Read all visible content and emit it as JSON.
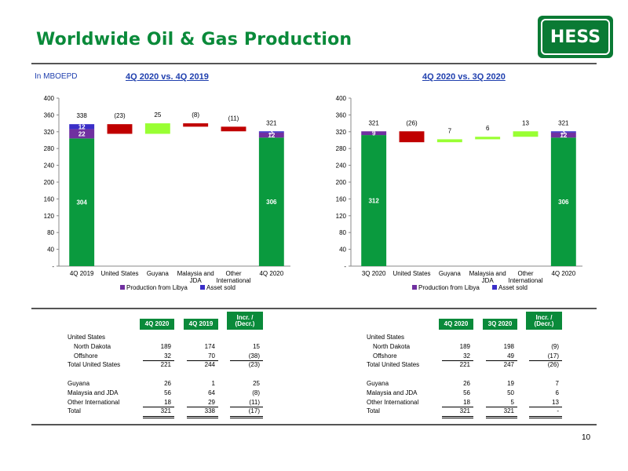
{
  "title": "Worldwide Oil & Gas Production",
  "logo_text": "HESS",
  "unit_label": "In MBOEPD",
  "page_number": "10",
  "colors": {
    "base": "#0a9a3e",
    "decrease": "#c00000",
    "increase": "#99ff33",
    "libya": "#7030a0",
    "asset_sold": "#3a2ec8"
  },
  "chart_data": [
    {
      "type": "bar",
      "title": "4Q 2020 vs. 4Q 2019",
      "categories": [
        "4Q 2019",
        "United States",
        "Guyana",
        "Malaysia and JDA",
        "Other International",
        "4Q 2020"
      ],
      "ylim": [
        0,
        400
      ],
      "yticks": [
        "-",
        "40",
        "80",
        "120",
        "160",
        "200",
        "240",
        "280",
        "320",
        "360",
        "400"
      ],
      "start": {
        "base": 304,
        "libya": 22,
        "asset_sold": 12,
        "total": 338
      },
      "steps": [
        {
          "label": "(23)",
          "delta": -23
        },
        {
          "label": "25",
          "delta": 25
        },
        {
          "label": "(8)",
          "delta": -8
        },
        {
          "label": "(11)",
          "delta": -11
        }
      ],
      "end": {
        "base": 306,
        "libya": 12,
        "asset_sold": 3,
        "total": 321
      },
      "legend": [
        "Production from Libya",
        "Asset sold"
      ]
    },
    {
      "type": "bar",
      "title": "4Q 2020 vs. 3Q 2020",
      "categories": [
        "3Q 2020",
        "United States",
        "Guyana",
        "Malaysia and JDA",
        "Other International",
        "4Q 2020"
      ],
      "ylim": [
        0,
        400
      ],
      "yticks": [
        "-",
        "40",
        "80",
        "120",
        "160",
        "200",
        "240",
        "280",
        "320",
        "360",
        "400"
      ],
      "start": {
        "base": 312,
        "libya": 9,
        "asset_sold": 0,
        "total": 321
      },
      "steps": [
        {
          "label": "(26)",
          "delta": -26
        },
        {
          "label": "7",
          "delta": 7
        },
        {
          "label": "6",
          "delta": 6
        },
        {
          "label": "13",
          "delta": 13
        }
      ],
      "end": {
        "base": 306,
        "libya": 12,
        "asset_sold": 3,
        "total": 321
      },
      "legend": [
        "Production from Libya",
        "Asset sold"
      ]
    }
  ],
  "tables": [
    {
      "headers": [
        "4Q 2020",
        "4Q 2019",
        "Incr. / (Decr.)"
      ],
      "rows": [
        {
          "label": "United States",
          "values": [
            "",
            "",
            ""
          ],
          "indent": false
        },
        {
          "label": "North Dakota",
          "values": [
            "189",
            "174",
            "15"
          ],
          "indent": true
        },
        {
          "label": "Offshore",
          "values": [
            "32",
            "70",
            "(38)"
          ],
          "indent": true,
          "underline": true
        },
        {
          "label": "Total United States",
          "values": [
            "221",
            "244",
            "(23)"
          ],
          "indent": false
        },
        {
          "label": "",
          "values": [
            "",
            "",
            ""
          ],
          "indent": false
        },
        {
          "label": "Guyana",
          "values": [
            "26",
            "1",
            "25"
          ],
          "indent": false
        },
        {
          "label": "Malaysia and JDA",
          "values": [
            "56",
            "64",
            "(8)"
          ],
          "indent": false
        },
        {
          "label": "Other International",
          "values": [
            "18",
            "29",
            "(11)"
          ],
          "indent": false,
          "underline": true
        },
        {
          "label": "Total",
          "values": [
            "321",
            "338",
            "(17)"
          ],
          "indent": false,
          "double_underline": true
        }
      ]
    },
    {
      "headers": [
        "4Q 2020",
        "3Q 2020",
        "Incr. / (Decr.)"
      ],
      "rows": [
        {
          "label": "United States",
          "values": [
            "",
            "",
            ""
          ],
          "indent": false
        },
        {
          "label": "North Dakota",
          "values": [
            "189",
            "198",
            "(9)"
          ],
          "indent": true
        },
        {
          "label": "Offshore",
          "values": [
            "32",
            "49",
            "(17)"
          ],
          "indent": true,
          "underline": true
        },
        {
          "label": "Total United States",
          "values": [
            "221",
            "247",
            "(26)"
          ],
          "indent": false
        },
        {
          "label": "",
          "values": [
            "",
            "",
            ""
          ],
          "indent": false
        },
        {
          "label": "Guyana",
          "values": [
            "26",
            "19",
            "7"
          ],
          "indent": false
        },
        {
          "label": "Malaysia and JDA",
          "values": [
            "56",
            "50",
            "6"
          ],
          "indent": false
        },
        {
          "label": "Other International",
          "values": [
            "18",
            "5",
            "13"
          ],
          "indent": false,
          "underline": true
        },
        {
          "label": "Total",
          "values": [
            "321",
            "321",
            "-"
          ],
          "indent": false,
          "double_underline": true
        }
      ]
    }
  ]
}
